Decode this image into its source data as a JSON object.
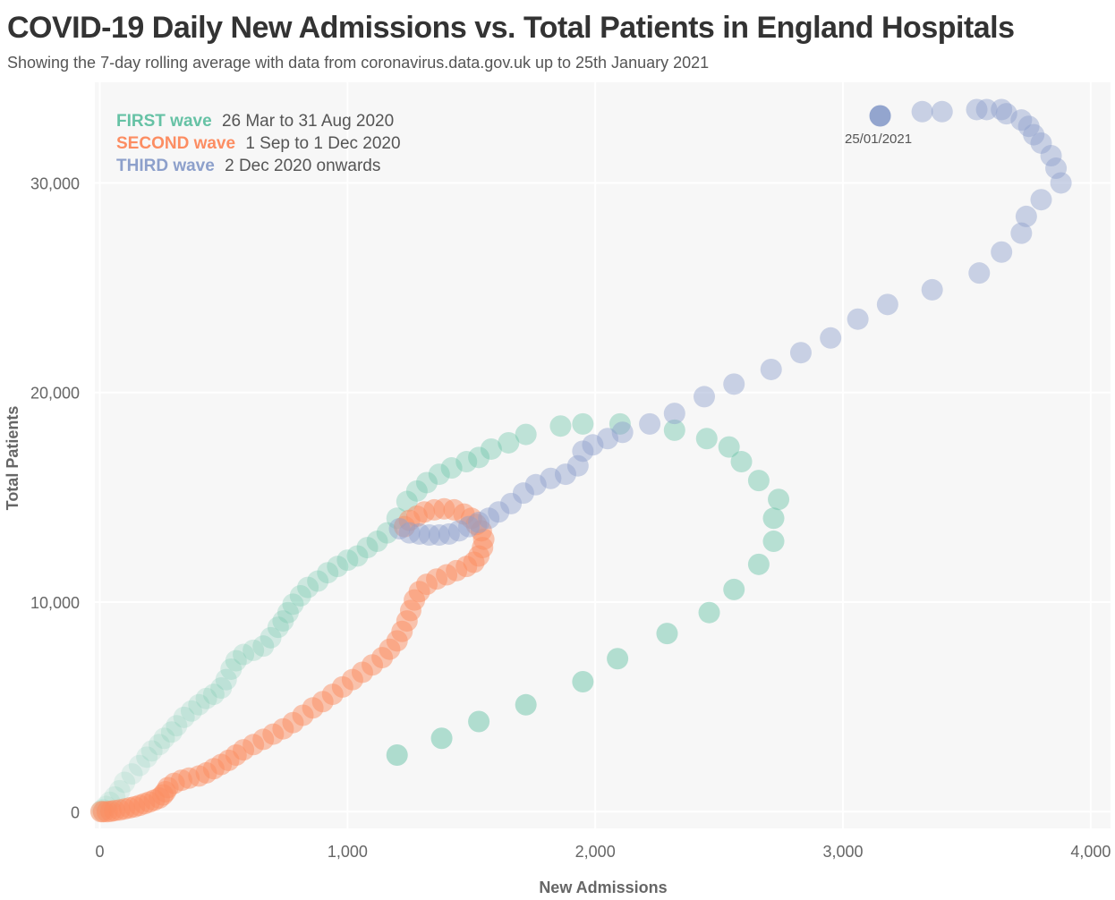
{
  "header": {
    "title": "COVID-19 Daily New Admissions vs. Total Patients in England Hospitals",
    "subtitle": "Showing the 7-day rolling average with data from coronavirus.data.gov.uk up to 25th January 2021"
  },
  "chart_data": {
    "type": "scatter",
    "xlabel": "New Admissions",
    "ylabel": "Total Patients",
    "xlim": [
      -20,
      4080
    ],
    "ylim": [
      -800,
      34800
    ],
    "xticks": [
      0,
      1000,
      2000,
      3000,
      4000
    ],
    "xtick_labels": [
      "0",
      "1,000",
      "2,000",
      "3,000",
      "4,000"
    ],
    "yticks": [
      0,
      10000,
      20000,
      30000
    ],
    "ytick_labels": [
      "0",
      "10,000",
      "20,000",
      "30,000"
    ],
    "grid": true,
    "legend_placement": "top-left",
    "legend": [
      {
        "name": "FIRST wave",
        "range": "26 Mar to 31 Aug 2020",
        "color": "#66c2a5"
      },
      {
        "name": "SECOND wave",
        "range": "1 Sep to 1 Dec 2020",
        "color": "#fc8d62"
      },
      {
        "name": "THIRD wave",
        "range": "2 Dec 2020 onwards",
        "color": "#8da0cb"
      }
    ],
    "annotation": {
      "text": "25/01/2021",
      "x": 3150,
      "y": 33300
    },
    "series": [
      {
        "name": "FIRST wave",
        "color": "#66c2a5",
        "points": [
          [
            1200,
            2700
          ],
          [
            1380,
            3500
          ],
          [
            1530,
            4300
          ],
          [
            1720,
            5100
          ],
          [
            1950,
            6200
          ],
          [
            2090,
            7300
          ],
          [
            2290,
            8500
          ],
          [
            2460,
            9500
          ],
          [
            2560,
            10600
          ],
          [
            2660,
            11800
          ],
          [
            2720,
            12900
          ],
          [
            2720,
            14000
          ],
          [
            2740,
            14900
          ],
          [
            2660,
            15800
          ],
          [
            2590,
            16700
          ],
          [
            2540,
            17400
          ],
          [
            2450,
            17800
          ],
          [
            2320,
            18200
          ],
          [
            2100,
            18500
          ],
          [
            1950,
            18500
          ],
          [
            1860,
            18400
          ],
          [
            1720,
            18000
          ],
          [
            1650,
            17600
          ],
          [
            1580,
            17300
          ],
          [
            1530,
            16900
          ],
          [
            1480,
            16700
          ],
          [
            1420,
            16400
          ],
          [
            1370,
            16100
          ],
          [
            1320,
            15700
          ],
          [
            1280,
            15300
          ],
          [
            1240,
            14800
          ],
          [
            1200,
            14000
          ],
          [
            1160,
            13300
          ],
          [
            1120,
            12900
          ],
          [
            1080,
            12600
          ],
          [
            1040,
            12200
          ],
          [
            1000,
            12000
          ],
          [
            960,
            11700
          ],
          [
            920,
            11400
          ],
          [
            880,
            11000
          ],
          [
            840,
            10700
          ],
          [
            810,
            10300
          ],
          [
            780,
            9900
          ],
          [
            760,
            9500
          ],
          [
            740,
            9100
          ],
          [
            720,
            8800
          ],
          [
            690,
            8300
          ],
          [
            660,
            7900
          ],
          [
            620,
            7700
          ],
          [
            580,
            7500
          ],
          [
            550,
            7200
          ],
          [
            530,
            6800
          ],
          [
            510,
            6300
          ],
          [
            490,
            5900
          ],
          [
            460,
            5600
          ],
          [
            430,
            5400
          ],
          [
            400,
            5100
          ],
          [
            370,
            4800
          ],
          [
            340,
            4500
          ],
          [
            310,
            4100
          ],
          [
            290,
            3800
          ],
          [
            260,
            3500
          ],
          [
            240,
            3200
          ],
          [
            210,
            2900
          ],
          [
            190,
            2600
          ],
          [
            160,
            2200
          ],
          [
            130,
            1800
          ],
          [
            100,
            1400
          ],
          [
            80,
            1000
          ],
          [
            60,
            700
          ],
          [
            40,
            450
          ],
          [
            25,
            250
          ],
          [
            12,
            100
          ],
          [
            5,
            30
          ]
        ]
      },
      {
        "name": "SECOND wave",
        "color": "#fc8d62",
        "points": [
          [
            5,
            0
          ],
          [
            15,
            0
          ],
          [
            30,
            0
          ],
          [
            45,
            20
          ],
          [
            60,
            50
          ],
          [
            80,
            80
          ],
          [
            100,
            130
          ],
          [
            120,
            180
          ],
          [
            140,
            230
          ],
          [
            160,
            300
          ],
          [
            180,
            380
          ],
          [
            200,
            460
          ],
          [
            220,
            550
          ],
          [
            240,
            650
          ],
          [
            255,
            800
          ],
          [
            265,
            950
          ],
          [
            275,
            1150
          ],
          [
            300,
            1350
          ],
          [
            330,
            1500
          ],
          [
            360,
            1600
          ],
          [
            400,
            1700
          ],
          [
            430,
            1850
          ],
          [
            460,
            2050
          ],
          [
            490,
            2250
          ],
          [
            520,
            2450
          ],
          [
            550,
            2700
          ],
          [
            580,
            2950
          ],
          [
            620,
            3200
          ],
          [
            660,
            3450
          ],
          [
            700,
            3700
          ],
          [
            740,
            3950
          ],
          [
            780,
            4250
          ],
          [
            820,
            4600
          ],
          [
            860,
            4950
          ],
          [
            900,
            5250
          ],
          [
            940,
            5600
          ],
          [
            980,
            5950
          ],
          [
            1020,
            6300
          ],
          [
            1060,
            6650
          ],
          [
            1100,
            7000
          ],
          [
            1140,
            7350
          ],
          [
            1170,
            7750
          ],
          [
            1200,
            8150
          ],
          [
            1220,
            8600
          ],
          [
            1240,
            9100
          ],
          [
            1255,
            9600
          ],
          [
            1270,
            10100
          ],
          [
            1290,
            10500
          ],
          [
            1320,
            10850
          ],
          [
            1360,
            11100
          ],
          [
            1400,
            11300
          ],
          [
            1440,
            11500
          ],
          [
            1480,
            11700
          ],
          [
            1510,
            11900
          ],
          [
            1530,
            12200
          ],
          [
            1545,
            12600
          ],
          [
            1550,
            13000
          ],
          [
            1540,
            13400
          ],
          [
            1520,
            13700
          ],
          [
            1500,
            14000
          ],
          [
            1470,
            14200
          ],
          [
            1430,
            14400
          ],
          [
            1390,
            14450
          ],
          [
            1350,
            14400
          ],
          [
            1310,
            14300
          ],
          [
            1280,
            14100
          ],
          [
            1250,
            13900
          ],
          [
            1230,
            13600
          ]
        ]
      },
      {
        "name": "THIRD wave",
        "color": "#8da0cb",
        "points": [
          [
            1210,
            13500
          ],
          [
            1250,
            13300
          ],
          [
            1290,
            13250
          ],
          [
            1330,
            13200
          ],
          [
            1370,
            13200
          ],
          [
            1410,
            13250
          ],
          [
            1450,
            13400
          ],
          [
            1490,
            13600
          ],
          [
            1530,
            13800
          ],
          [
            1570,
            14000
          ],
          [
            1610,
            14300
          ],
          [
            1660,
            14700
          ],
          [
            1710,
            15200
          ],
          [
            1760,
            15600
          ],
          [
            1820,
            15900
          ],
          [
            1880,
            16100
          ],
          [
            1930,
            16500
          ],
          [
            1950,
            17200
          ],
          [
            1990,
            17500
          ],
          [
            2050,
            17800
          ],
          [
            2110,
            18100
          ],
          [
            2220,
            18500
          ],
          [
            2320,
            19000
          ],
          [
            2440,
            19800
          ],
          [
            2560,
            20400
          ],
          [
            2710,
            21100
          ],
          [
            2830,
            21900
          ],
          [
            2950,
            22600
          ],
          [
            3060,
            23500
          ],
          [
            3180,
            24200
          ],
          [
            3360,
            24900
          ],
          [
            3550,
            25700
          ],
          [
            3640,
            26700
          ],
          [
            3720,
            27600
          ],
          [
            3740,
            28400
          ],
          [
            3800,
            29200
          ],
          [
            3880,
            30000
          ],
          [
            3860,
            30700
          ],
          [
            3840,
            31300
          ],
          [
            3800,
            31900
          ],
          [
            3770,
            32300
          ],
          [
            3750,
            32700
          ],
          [
            3720,
            33000
          ],
          [
            3660,
            33300
          ],
          [
            3640,
            33500
          ],
          [
            3580,
            33500
          ],
          [
            3540,
            33500
          ],
          [
            3400,
            33400
          ],
          [
            3320,
            33400
          ],
          [
            3150,
            33200
          ]
        ]
      }
    ]
  }
}
